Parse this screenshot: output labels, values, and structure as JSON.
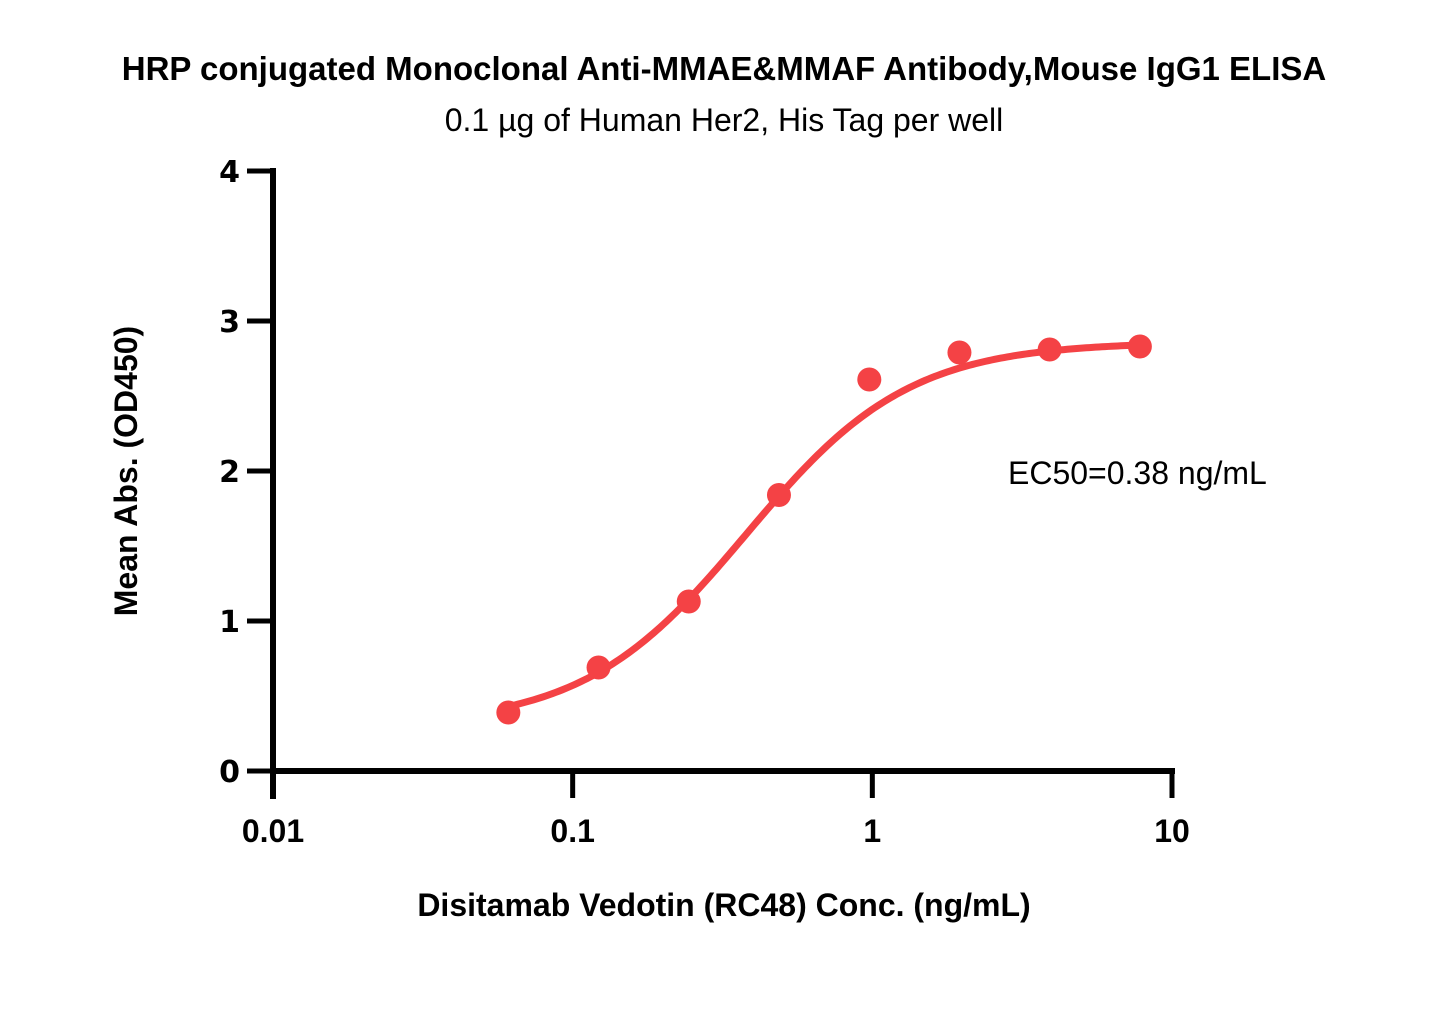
{
  "chart_data": {
    "type": "scatter",
    "title": "HRP conjugated Monoclonal Anti-MMAE&MMAF Antibody,Mouse IgG1 ELISA",
    "subtitle": "0.1 µg of Human Her2, His Tag per well",
    "xlabel": "Disitamab Vedotin (RC48) Conc. (ng/mL)",
    "ylabel": "Mean Abs. (OD450)",
    "xscale": "log",
    "xlim": [
      0.01,
      10
    ],
    "ylim": [
      0,
      4
    ],
    "xticks": [
      0.01,
      0.1,
      1,
      10
    ],
    "xtick_labels": [
      "0.01",
      "0.1",
      "1",
      "10"
    ],
    "yticks": [
      0,
      1,
      2,
      3,
      4
    ],
    "ytick_labels": [
      "0",
      "1",
      "2",
      "3",
      "4"
    ],
    "grid": false,
    "series": [
      {
        "name": "Disitamab Vedotin (RC48)",
        "color": "#f44245",
        "x": [
          0.061,
          0.122,
          0.244,
          0.488,
          0.977,
          1.953,
          3.906,
          7.813
        ],
        "y": [
          0.39,
          0.69,
          1.13,
          1.84,
          2.61,
          2.79,
          2.81,
          2.83
        ],
        "fit": {
          "model": "4PL",
          "bottom": 0.3,
          "top": 2.86,
          "ec50": 0.38,
          "hill": 1.6
        }
      }
    ],
    "annotations": [
      {
        "text": "EC50=0.38 ng/mL",
        "position": "right-middle"
      }
    ]
  }
}
